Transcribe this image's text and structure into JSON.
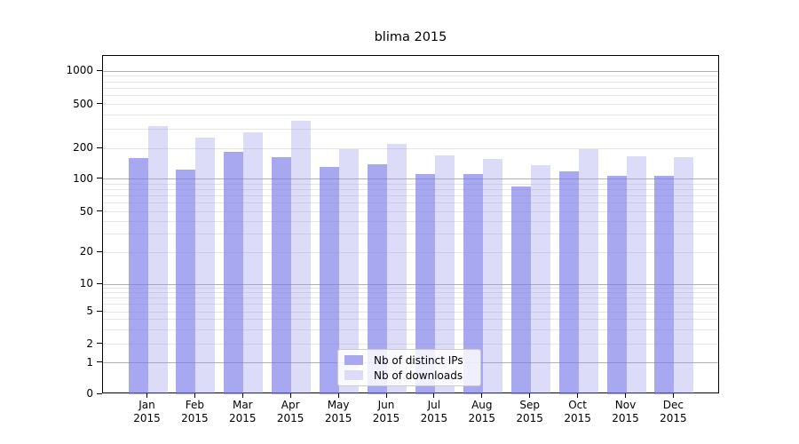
{
  "chart_data": {
    "type": "bar",
    "title": "blima 2015",
    "categories": [
      "Jan 2015",
      "Feb 2015",
      "Mar 2015",
      "Apr 2015",
      "May 2015",
      "Jun 2015",
      "Jul 2015",
      "Aug 2015",
      "Sep 2015",
      "Oct 2015",
      "Nov 2015",
      "Dec 2015"
    ],
    "series": [
      {
        "name": "Nb of distinct IPs",
        "values": [
          160,
          123,
          183,
          164,
          132,
          139,
          111,
          112,
          85,
          118,
          107,
          107
        ]
      },
      {
        "name": "Nb of downloads",
        "values": [
          320,
          250,
          278,
          355,
          196,
          221,
          170,
          156,
          136,
          198,
          166,
          164
        ]
      }
    ],
    "yscale": "symlog",
    "ylim": [
      0,
      1400
    ],
    "y_ticks": [
      0,
      1,
      2,
      5,
      10,
      20,
      50,
      100,
      200,
      500,
      1000
    ],
    "major_grid_ticks": [
      1,
      10,
      100,
      1000
    ],
    "grid": "horizontal major + minor",
    "legend_position": "lower center",
    "xlabel": "",
    "ylabel": ""
  },
  "colors": {
    "bar_ips": "#a8a8f0",
    "bar_ips_fill": "rgba(121,121,232,0.65)",
    "bar_downloads": "#dcdcf8",
    "bar_downloads_fill": "rgba(155,155,235,0.35)",
    "major_grid": "#b0b0b0",
    "minor_grid": "#e5e5e5",
    "spine": "#000000",
    "text": "#000000",
    "legend_border": "#cccccc"
  }
}
